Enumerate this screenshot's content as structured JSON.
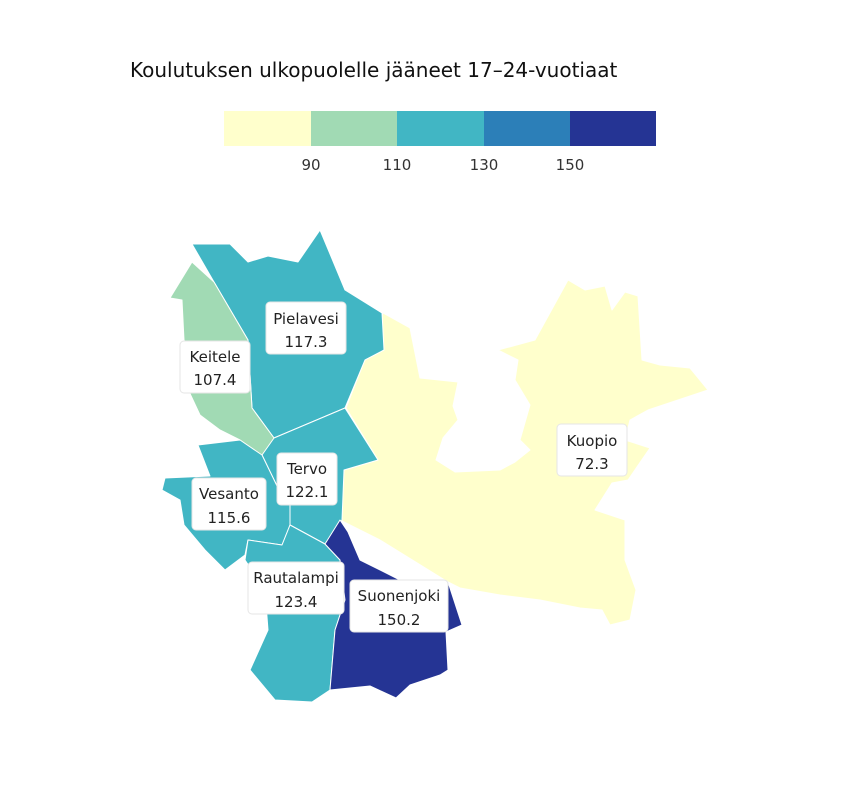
{
  "title": "Koulutuksen ulkopuolelle jääneet 17–24-vuotiaat",
  "legend": {
    "colors": [
      "#ffffcc",
      "#a1dab4",
      "#41b6c4",
      "#2c7fb8",
      "#253494"
    ],
    "ticks": [
      "90",
      "110",
      "130",
      "150"
    ]
  },
  "regions": [
    {
      "name": "Pielavesi",
      "value": "117.3",
      "color": "#41b6c4"
    },
    {
      "name": "Keitele",
      "value": "107.4",
      "color": "#a1dab4"
    },
    {
      "name": "Tervo",
      "value": "122.1",
      "color": "#41b6c4"
    },
    {
      "name": "Vesanto",
      "value": "115.6",
      "color": "#41b6c4"
    },
    {
      "name": "Rautalampi",
      "value": "123.4",
      "color": "#41b6c4"
    },
    {
      "name": "Suonenjoki",
      "value": "150.2",
      "color": "#253494"
    },
    {
      "name": "Kuopio",
      "value": "72.3",
      "color": "#ffffcc"
    }
  ]
}
